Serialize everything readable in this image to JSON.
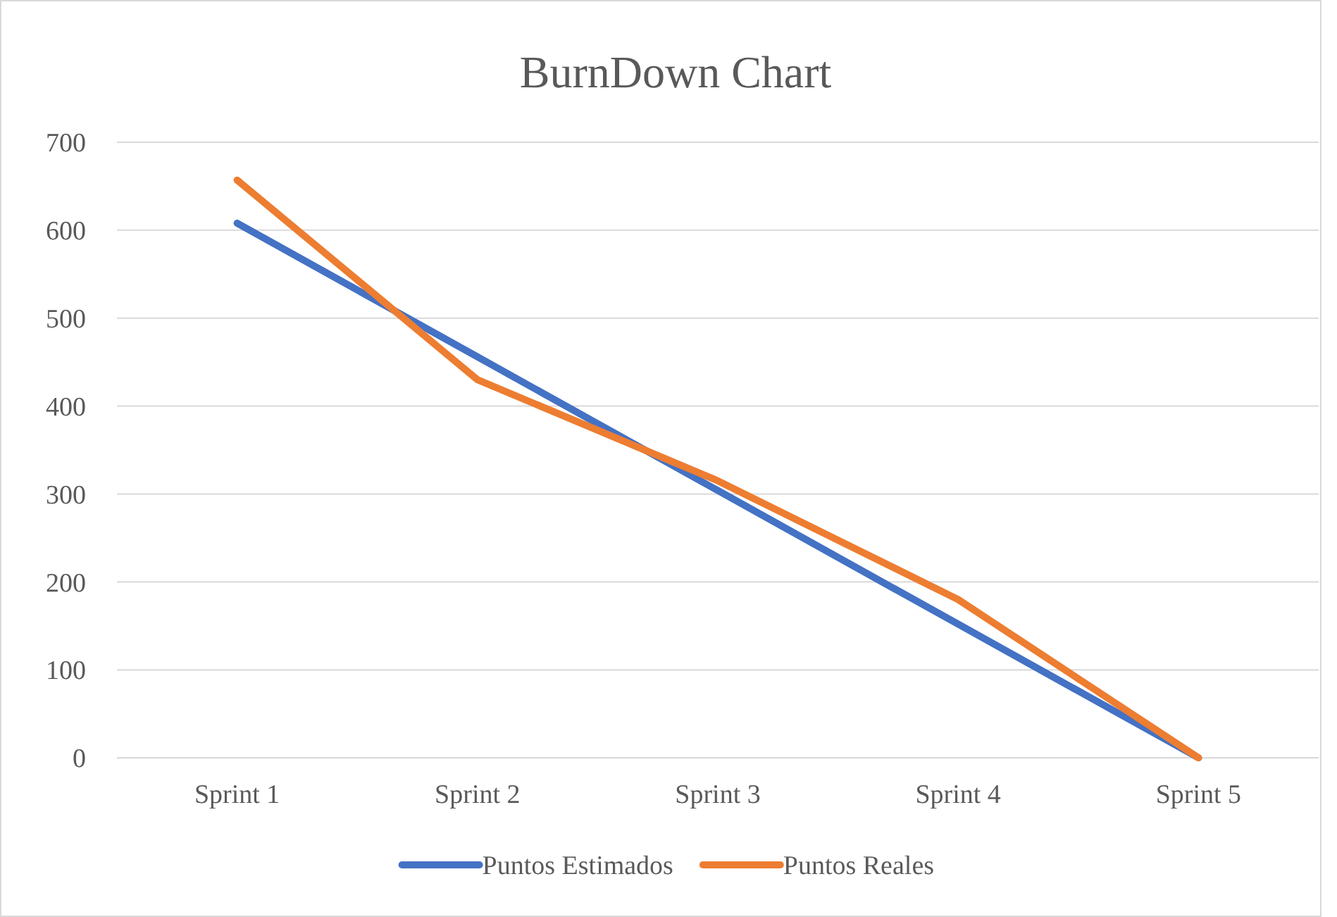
{
  "chart_data": {
    "type": "line",
    "title": "BurnDown Chart",
    "categories": [
      "Sprint 1",
      "Sprint 2",
      "Sprint 3",
      "Sprint 4",
      "Sprint 5"
    ],
    "series": [
      {
        "name": "Puntos Estimados",
        "color": "#4472c4",
        "values": [
          608,
          456,
          304,
          152,
          0
        ]
      },
      {
        "name": "Puntos Reales",
        "color": "#ed7d31",
        "values": [
          657,
          430,
          315,
          180,
          0
        ]
      }
    ],
    "ylim": [
      0,
      700
    ],
    "yticks": [
      0,
      100,
      200,
      300,
      400,
      500,
      600,
      700
    ],
    "grid": "y",
    "legend": "bottom",
    "marker": "none",
    "line_style": "solid"
  }
}
